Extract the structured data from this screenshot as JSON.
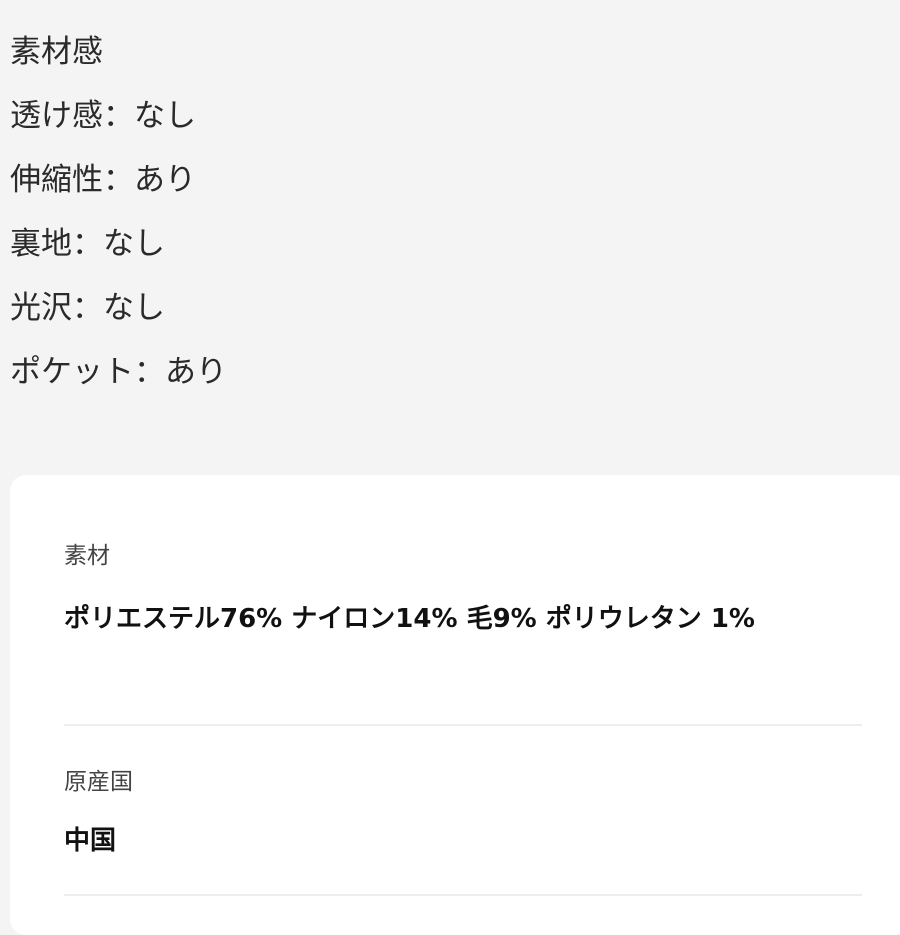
{
  "texture": {
    "items": [
      "素材感",
      "透け感：なし",
      "伸縮性：あり",
      "裏地：なし",
      "光沢：なし",
      "ポケット：あり"
    ]
  },
  "details": {
    "material": {
      "label": "素材",
      "value": "ポリエステル76% ナイロン14% 毛9% ポリウレタン 1%"
    },
    "origin": {
      "label": "原産国",
      "value": "中国"
    }
  }
}
